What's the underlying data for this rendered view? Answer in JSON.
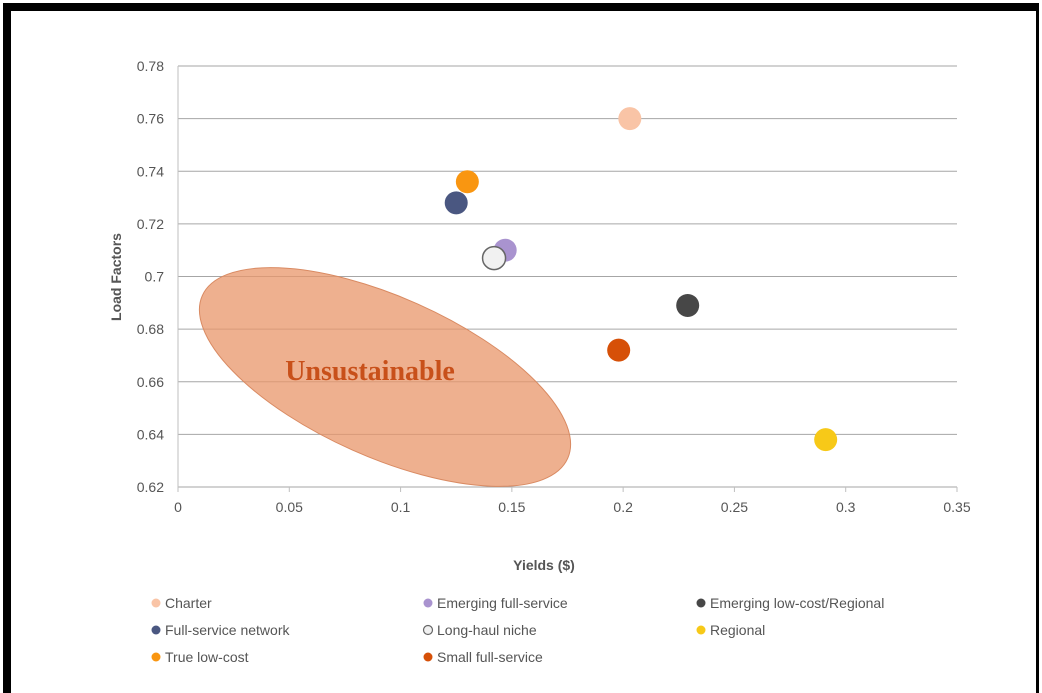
{
  "chart_data": {
    "type": "scatter",
    "xlabel": "Yields ($)",
    "ylabel": "Load Factors",
    "xlim": [
      0,
      0.35
    ],
    "ylim": [
      0.62,
      0.78
    ],
    "x_ticks": [
      "0",
      "0.05",
      "0.1",
      "0.15",
      "0.2",
      "0.25",
      "0.3",
      "0.35"
    ],
    "y_ticks": [
      "0.62",
      "0.64",
      "0.66",
      "0.68",
      "0.7",
      "0.72",
      "0.74",
      "0.76",
      "0.78"
    ],
    "grid": "horizontal",
    "legend_placement": "bottom",
    "series": [
      {
        "name": "Charter",
        "color": "#f9c4a6",
        "x": 0.203,
        "y": 0.76
      },
      {
        "name": "Emerging full-service",
        "color": "#a993cf",
        "x": 0.147,
        "y": 0.71
      },
      {
        "name": "Emerging low-cost/Regional",
        "color": "#474747",
        "x": 0.229,
        "y": 0.689
      },
      {
        "name": "Full-service network",
        "color": "#4a5781",
        "x": 0.125,
        "y": 0.728
      },
      {
        "name": "Long-haul niche",
        "color": "#f1f1f1",
        "stroke": "#666666",
        "x": 0.142,
        "y": 0.707
      },
      {
        "name": "Regional",
        "color": "#f7c918",
        "x": 0.291,
        "y": 0.638
      },
      {
        "name": "True low-cost",
        "color": "#f99611",
        "x": 0.13,
        "y": 0.736
      },
      {
        "name": "Small full-service",
        "color": "#d65008",
        "x": 0.198,
        "y": 0.672
      }
    ],
    "annotations": [
      {
        "text": "Unsustainable",
        "color": "#c8501a",
        "region_color": "#e8956a"
      }
    ]
  }
}
